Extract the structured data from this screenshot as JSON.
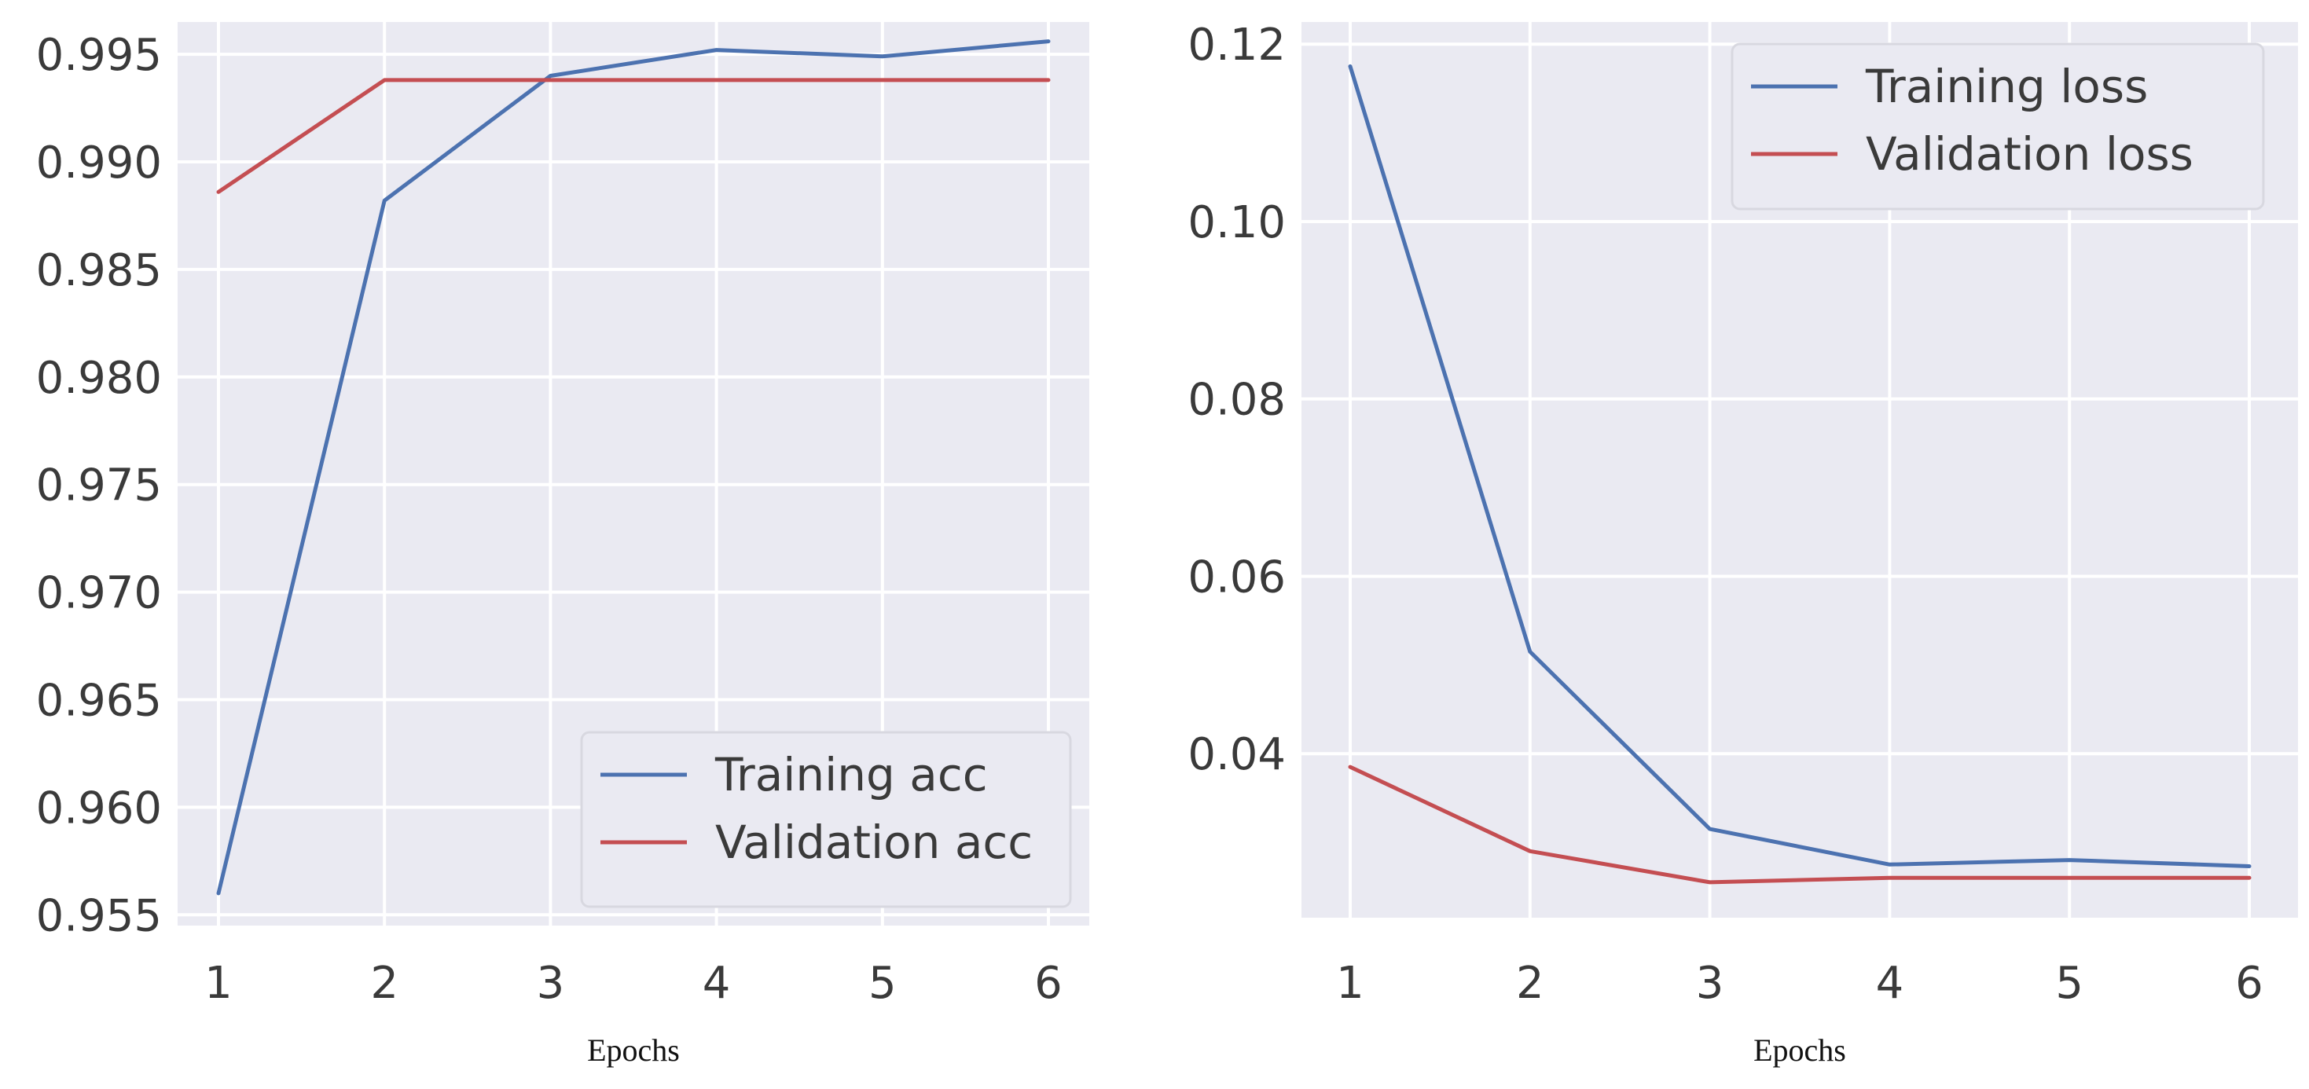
{
  "chart_data": [
    {
      "type": "line",
      "x": [
        1,
        2,
        3,
        4,
        5,
        6
      ],
      "xlabel": "Epochs",
      "ylabel": "",
      "title": "",
      "ylim": [
        0.9545,
        0.9965
      ],
      "xticks": [
        "1",
        "2",
        "3",
        "4",
        "5",
        "6"
      ],
      "yticks": [
        "0.955",
        "0.960",
        "0.965",
        "0.970",
        "0.975",
        "0.980",
        "0.985",
        "0.990",
        "0.995"
      ],
      "grid": true,
      "legend_position": "bottom-right",
      "series": [
        {
          "name": "Training acc",
          "color": "#4c72b0",
          "values": [
            0.956,
            0.9882,
            0.994,
            0.9952,
            0.9949,
            0.9956
          ]
        },
        {
          "name": "Validation acc",
          "color": "#c44e52",
          "values": [
            0.9886,
            0.9938,
            0.9938,
            0.9938,
            0.9938,
            0.9938
          ]
        }
      ]
    },
    {
      "type": "line",
      "x": [
        1,
        2,
        3,
        4,
        5,
        6
      ],
      "xlabel": "Epochs",
      "ylabel": "",
      "title": "",
      "ylim": [
        0.0215,
        0.1225
      ],
      "xticks": [
        "1",
        "2",
        "3",
        "4",
        "5",
        "6"
      ],
      "yticks": [
        "0.04",
        "0.06",
        "0.08",
        "0.10",
        "0.12"
      ],
      "grid": true,
      "legend_position": "top-right",
      "series": [
        {
          "name": "Training loss",
          "color": "#4c72b0",
          "values": [
            0.1175,
            0.0515,
            0.0315,
            0.0275,
            0.028,
            0.0273
          ]
        },
        {
          "name": "Validation loss",
          "color": "#c44e52",
          "values": [
            0.0385,
            0.029,
            0.0255,
            0.026,
            0.026,
            0.026
          ]
        }
      ]
    }
  ]
}
